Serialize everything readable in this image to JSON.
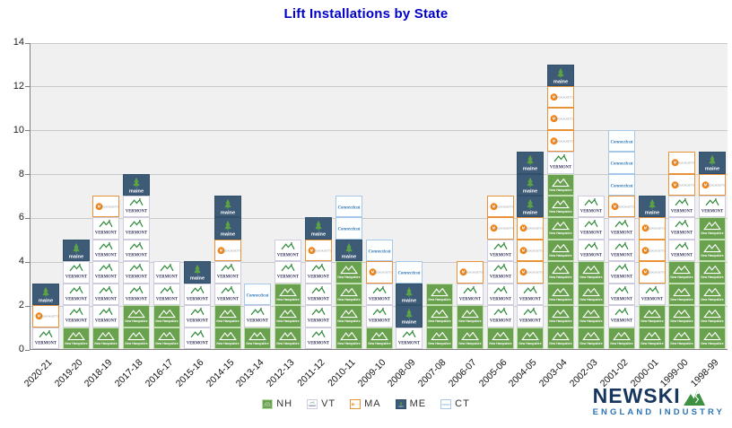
{
  "title": "Lift Installations by State",
  "chart_data": {
    "type": "bar",
    "stacked": true,
    "title": "Lift Installations by State",
    "xlabel": "",
    "ylabel": "",
    "ylim": [
      0,
      14
    ],
    "yticks": [
      0,
      2,
      4,
      6,
      8,
      10,
      12,
      14
    ],
    "grid": true,
    "legend_position": "bottom",
    "categories": [
      "2020-21",
      "2019-20",
      "2018-19",
      "2017-18",
      "2016-17",
      "2015-16",
      "2014-15",
      "2013-14",
      "2012-13",
      "2011-12",
      "2010-11",
      "2009-10",
      "2008-09",
      "2007-08",
      "2006-07",
      "2005-06",
      "2004-05",
      "2003-04",
      "2002-03",
      "2001-02",
      "2000-01",
      "1999-00",
      "1998-99"
    ],
    "series": [
      {
        "name": "NH",
        "values": [
          0,
          1,
          1,
          2,
          2,
          0,
          2,
          1,
          3,
          0,
          4,
          1,
          0,
          3,
          2,
          1,
          1,
          8,
          4,
          1,
          2,
          4,
          6
        ]
      },
      {
        "name": "VT",
        "values": [
          1,
          3,
          5,
          5,
          2,
          3,
          2,
          1,
          2,
          4,
          0,
          2,
          1,
          0,
          1,
          4,
          2,
          1,
          3,
          5,
          1,
          3,
          1
        ]
      },
      {
        "name": "MA",
        "values": [
          1,
          0,
          1,
          0,
          0,
          0,
          1,
          0,
          0,
          1,
          0,
          1,
          0,
          0,
          1,
          2,
          3,
          3,
          0,
          1,
          3,
          2,
          1
        ]
      },
      {
        "name": "ME",
        "values": [
          1,
          1,
          0,
          1,
          0,
          1,
          2,
          0,
          0,
          1,
          1,
          0,
          2,
          0,
          0,
          0,
          3,
          1,
          0,
          0,
          1,
          0,
          1
        ]
      },
      {
        "name": "CT",
        "values": [
          0,
          0,
          0,
          0,
          0,
          0,
          0,
          1,
          0,
          0,
          2,
          1,
          1,
          0,
          0,
          0,
          0,
          0,
          0,
          3,
          0,
          0,
          0
        ]
      }
    ]
  },
  "states": {
    "NH": {
      "label": "NH",
      "logo_text": "New Hampshire",
      "bg": "#6aa14e",
      "border": "#bfe0ae",
      "accent": "#ffffff"
    },
    "VT": {
      "label": "VT",
      "logo_text": "VERMONT",
      "bg": "#ffffff",
      "border": "#cfccdf",
      "accent": "#2f8a3a"
    },
    "MA": {
      "label": "MA",
      "logo_text": "MASSACHUSETTS",
      "bg": "#ffffff",
      "border": "#e89239",
      "accent": "#ef8318"
    },
    "ME": {
      "label": "ME",
      "logo_text": "maine",
      "bg": "#3d5a77",
      "border": "#33506b",
      "accent": "#5da344"
    },
    "CT": {
      "label": "CT",
      "logo_text": "Connecticut",
      "bg": "#fdfefe",
      "border": "#a6c9e9",
      "accent": "#2e75b6"
    }
  },
  "colors": {
    "title": "#0000c8",
    "plot_bg": "#f0f0f0",
    "gridline": "#c9c9c9",
    "axis": "#7f7f7f"
  },
  "logo": {
    "line1": "NEWSKI",
    "line2": "ENGLAND INDUSTRY"
  }
}
